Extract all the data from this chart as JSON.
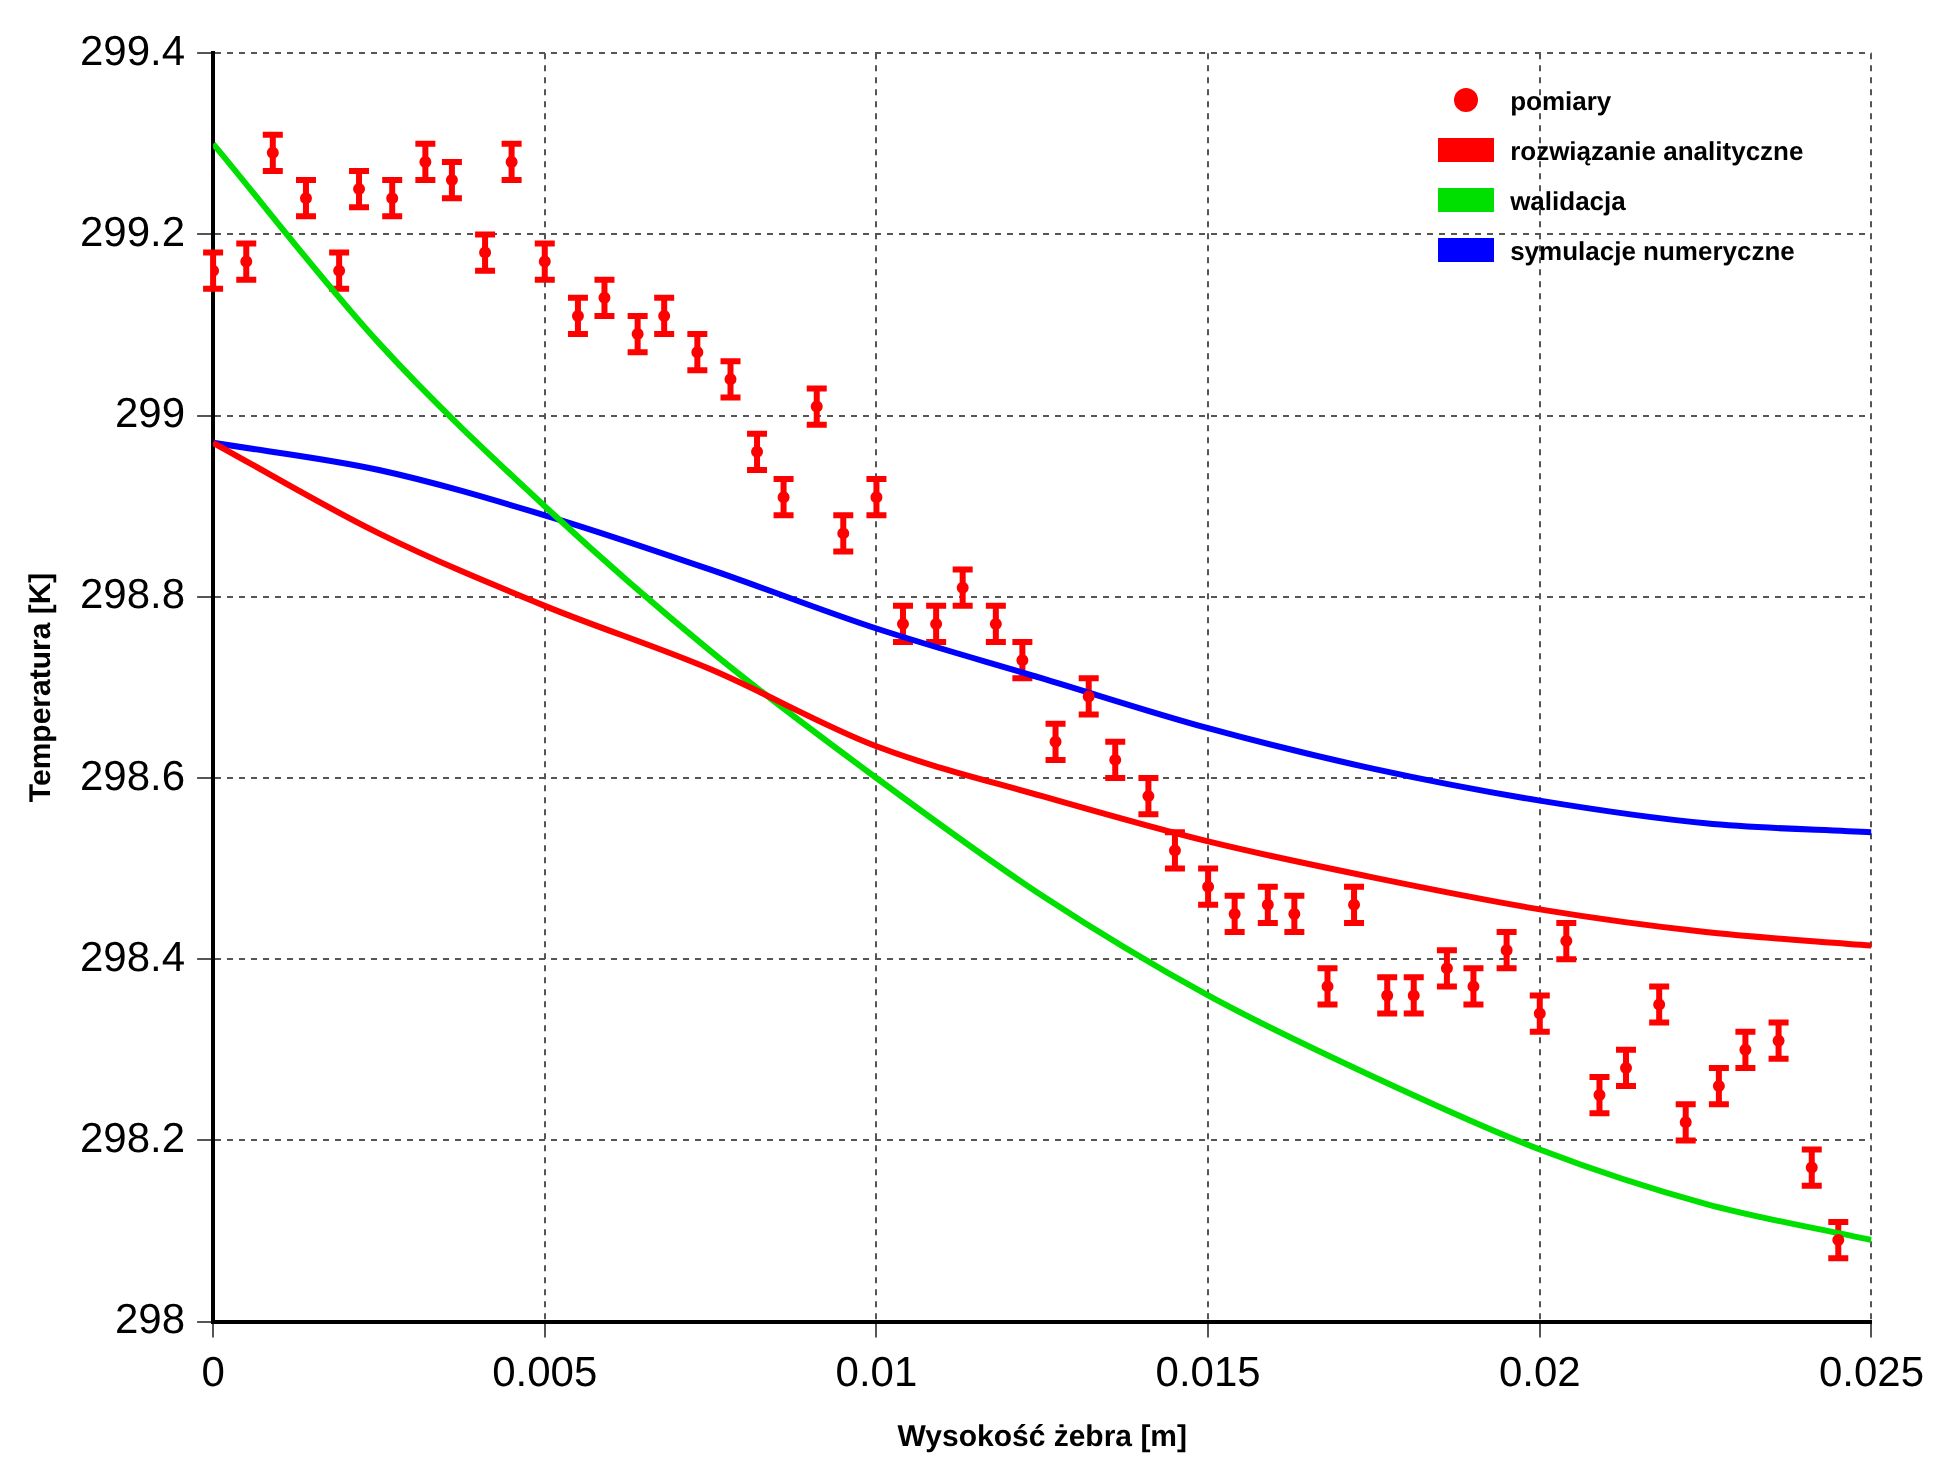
{
  "chart_data": {
    "type": "line",
    "xlabel": "Wysokość żebra [m]",
    "ylabel": "Temperatura [K]",
    "xlim": [
      0,
      0.025
    ],
    "xticks": [
      0,
      0.005,
      0.01,
      0.015,
      0.02,
      0.025
    ],
    "ylim": [
      298,
      299.4
    ],
    "yticks": [
      298,
      298.2,
      298.4,
      298.6,
      298.8,
      299,
      299.2,
      299.4
    ],
    "grid": true,
    "legend": "top right",
    "line_style": "solid",
    "marker": "none",
    "series": [
      {
        "name": "pomiary",
        "type": "scatter",
        "marker": "circle",
        "color": "#ff0000",
        "x": [
          0,
          0.0005,
          0.0009,
          0.0014,
          0.0019,
          0.0022,
          0.0027,
          0.0032,
          0.0036,
          0.0041,
          0.0045,
          0.005,
          0.0055,
          0.0059,
          0.0064,
          0.0068,
          0.0073,
          0.0078,
          0.0082,
          0.0086,
          0.0091,
          0.0095,
          0.01,
          0.0104,
          0.0109,
          0.0113,
          0.0118,
          0.0122,
          0.0127,
          0.0132,
          0.0136,
          0.0141,
          0.0145,
          0.015,
          0.0154,
          0.0159,
          0.0163,
          0.0168,
          0.0172,
          0.0177,
          0.0181,
          0.0186,
          0.019,
          0.0195,
          0.02,
          0.0204,
          0.0209,
          0.0213,
          0.0218,
          0.0222,
          0.0227,
          0.0231,
          0.0236,
          0.0241,
          0.0245
        ],
        "values": [
          299.16,
          299.17,
          299.29,
          299.24,
          299.16,
          299.25,
          299.24,
          299.28,
          299.26,
          299.18,
          299.28,
          299.17,
          299.11,
          299.13,
          299.09,
          299.11,
          299.07,
          299.04,
          298.96,
          298.91,
          299.01,
          298.87,
          298.91,
          298.77,
          298.77,
          298.81,
          298.77,
          298.73,
          298.64,
          298.69,
          298.62,
          298.58,
          298.52,
          298.48,
          298.45,
          298.46,
          298.45,
          298.37,
          298.46,
          298.36,
          298.36,
          298.39,
          298.37,
          298.41,
          298.34,
          298.42,
          298.25,
          298.28,
          298.35,
          298.22,
          298.26,
          298.3,
          298.31,
          298.17,
          298.09
        ],
        "errors": [
          0.02,
          0.02,
          0.02,
          0.02,
          0.02,
          0.02,
          0.02,
          0.02,
          0.02,
          0.02,
          0.02,
          0.02,
          0.02,
          0.02,
          0.02,
          0.02,
          0.02,
          0.02,
          0.02,
          0.02,
          0.02,
          0.02,
          0.02,
          0.02,
          0.02,
          0.02,
          0.02,
          0.02,
          0.02,
          0.02,
          0.02,
          0.02,
          0.02,
          0.02,
          0.02,
          0.02,
          0.02,
          0.02,
          0.02,
          0.02,
          0.02,
          0.02,
          0.02,
          0.02,
          0.02,
          0.02,
          0.02,
          0.02,
          0.02,
          0.02,
          0.02,
          0.02,
          0.02,
          0.02,
          0.02
        ]
      },
      {
        "name": "rozwiązanie analityczne",
        "color": "#ff0000",
        "x": [
          0,
          0.0025,
          0.005,
          0.0075,
          0.01,
          0.0125,
          0.015,
          0.0175,
          0.02,
          0.0225,
          0.025
        ],
        "values": [
          298.97,
          298.87,
          298.79,
          298.72,
          298.635,
          298.58,
          298.53,
          298.49,
          298.455,
          298.43,
          298.415
        ]
      },
      {
        "name": "walidacja",
        "color": "#00e000",
        "x": [
          0,
          0.0025,
          0.005,
          0.0075,
          0.01,
          0.0125,
          0.015,
          0.0175,
          0.02,
          0.0225,
          0.025
        ],
        "values": [
          299.3,
          299.08,
          298.9,
          298.74,
          298.6,
          298.47,
          298.36,
          298.27,
          298.19,
          298.13,
          298.09
        ]
      },
      {
        "name": "symulacje numeryczne",
        "color": "#0000ff",
        "x": [
          0,
          0.0025,
          0.005,
          0.0075,
          0.01,
          0.0125,
          0.015,
          0.0175,
          0.02,
          0.0225,
          0.025
        ],
        "values": [
          298.97,
          298.94,
          298.89,
          298.83,
          298.765,
          298.71,
          298.655,
          298.61,
          298.575,
          298.55,
          298.54
        ]
      }
    ]
  }
}
